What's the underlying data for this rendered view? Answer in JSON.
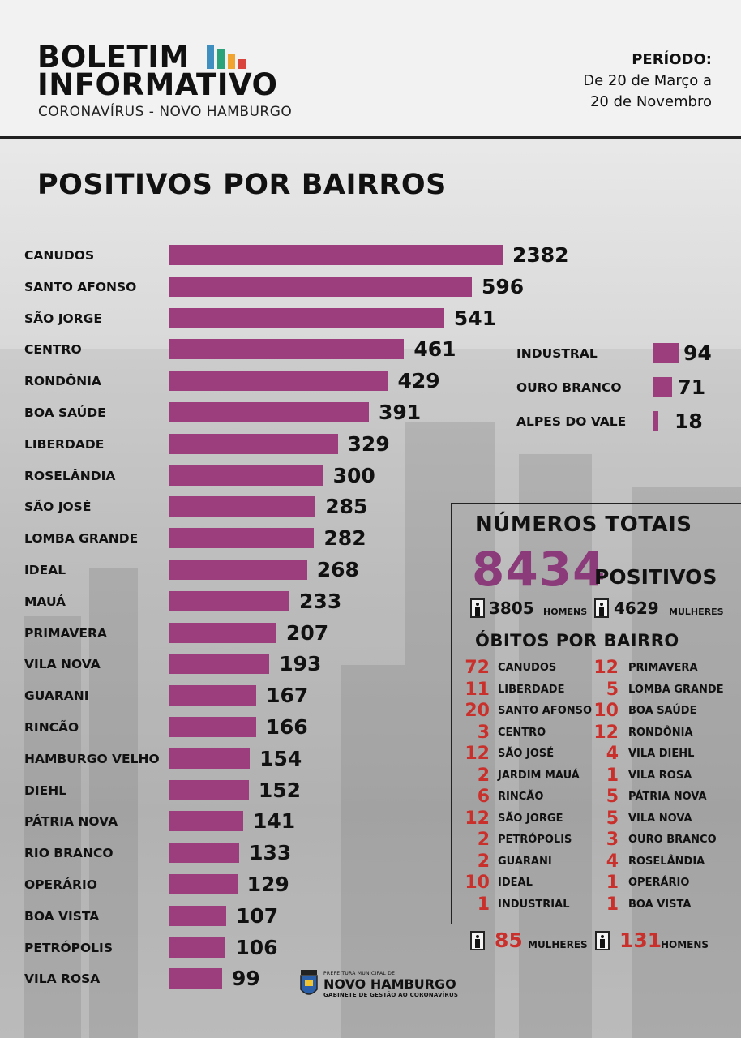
{
  "header": {
    "title_line1": "BOLETIM",
    "title_line2": "INFORMATIVO",
    "subtitle": "CORONAVÍRUS - NOVO HAMBURGO",
    "period_label": "PERÍODO:",
    "period_line1": "De 20 de Março a",
    "period_line2": "20 de Novembro",
    "logo_colors": [
      "#3f8fc1",
      "#2aa37a",
      "#f2a431",
      "#d9453d"
    ]
  },
  "chart_data": {
    "type": "bar",
    "orientation": "horizontal",
    "title": "POSITIVOS POR BAIRROS",
    "categories": [
      "CANUDOS",
      "SANTO AFONSO",
      "SÃO JORGE",
      "CENTRO",
      "RONDÔNIA",
      "BOA SAÚDE",
      "LIBERDADE",
      "ROSELÂNDIA",
      "SÃO JOSÉ",
      "LOMBA GRANDE",
      "IDEAL",
      "MAUÁ",
      "PRIMAVERA",
      "VILA NOVA",
      "GUARANI",
      "RINCÃO",
      "HAMBURGO VELHO",
      "DIEHL",
      "PÁTRIA NOVA",
      "RIO BRANCO",
      "OPERÁRIO",
      "BOA VISTA",
      "PETRÓPOLIS",
      "VILA ROSA"
    ],
    "values": [
      2382,
      596,
      541,
      461,
      429,
      391,
      329,
      300,
      285,
      282,
      268,
      233,
      207,
      193,
      167,
      166,
      154,
      152,
      141,
      133,
      129,
      107,
      106,
      99
    ],
    "value_labels": [
      "2382",
      "596",
      "541",
      "461",
      "429",
      "391",
      "329",
      "300",
      "285",
      "282",
      "268",
      "233",
      "207",
      "193",
      "167",
      "166",
      "154",
      "152",
      "141",
      "133",
      "129",
      "107",
      "106",
      "99"
    ],
    "extra_categories": [
      "INDUSTRAL",
      "OURO BRANCO",
      "ALPES DO VALE"
    ],
    "extra_values": [
      94,
      71,
      18
    ],
    "extra_value_labels": [
      "94",
      "71",
      "18"
    ],
    "bar_color": "#9c3d7e",
    "note": "bar lengths are not drawn to a linear scale"
  },
  "totals": {
    "title": "NÚMEROS TOTAIS",
    "positive_count": "8434",
    "positive_label": "POSITIVOS",
    "men_count": "3805",
    "men_label": "HOMENS",
    "women_count": "4629",
    "women_label": "MULHERES"
  },
  "deaths": {
    "title": "ÓBITOS POR BAIRRO",
    "left": [
      {
        "num": "72",
        "label": "CANUDOS"
      },
      {
        "num": "11",
        "label": "LIBERDADE"
      },
      {
        "num": "20",
        "label": "SANTO AFONSO"
      },
      {
        "num": "3",
        "label": "CENTRO"
      },
      {
        "num": "12",
        "label": "SÃO JOSÉ"
      },
      {
        "num": "2",
        "label": "JARDIM MAUÁ"
      },
      {
        "num": "6",
        "label": "RINCÃO"
      },
      {
        "num": "12",
        "label": "SÃO JORGE"
      },
      {
        "num": "2",
        "label": "PETRÓPOLIS"
      },
      {
        "num": "2",
        "label": "GUARANI"
      },
      {
        "num": "10",
        "label": "IDEAL"
      },
      {
        "num": "1",
        "label": "INDUSTRIAL"
      }
    ],
    "right": [
      {
        "num": "12",
        "label": "PRIMAVERA"
      },
      {
        "num": "5",
        "label": "LOMBA GRANDE"
      },
      {
        "num": "10",
        "label": "BOA SAÚDE"
      },
      {
        "num": "12",
        "label": "RONDÔNIA"
      },
      {
        "num": "4",
        "label": "VILA DIEHL"
      },
      {
        "num": "1",
        "label": "VILA ROSA"
      },
      {
        "num": "5",
        "label": "PÁTRIA NOVA"
      },
      {
        "num": "5",
        "label": "VILA NOVA"
      },
      {
        "num": "3",
        "label": "OURO BRANCO"
      },
      {
        "num": "4",
        "label": "ROSELÂNDIA"
      },
      {
        "num": "1",
        "label": "OPERÁRIO"
      },
      {
        "num": "1",
        "label": "BOA VISTA"
      }
    ],
    "women_count": "85",
    "women_label": "MULHERES",
    "men_count": "131",
    "men_label": "HOMENS",
    "number_color": "#c9302c"
  },
  "footer": {
    "small_text": "PREFEITURA MUNICIPAL DE",
    "main_text": "NOVO HAMBURGO",
    "sub_text": "GABINETE DE GESTÃO AO CORONAVÍRUS"
  }
}
